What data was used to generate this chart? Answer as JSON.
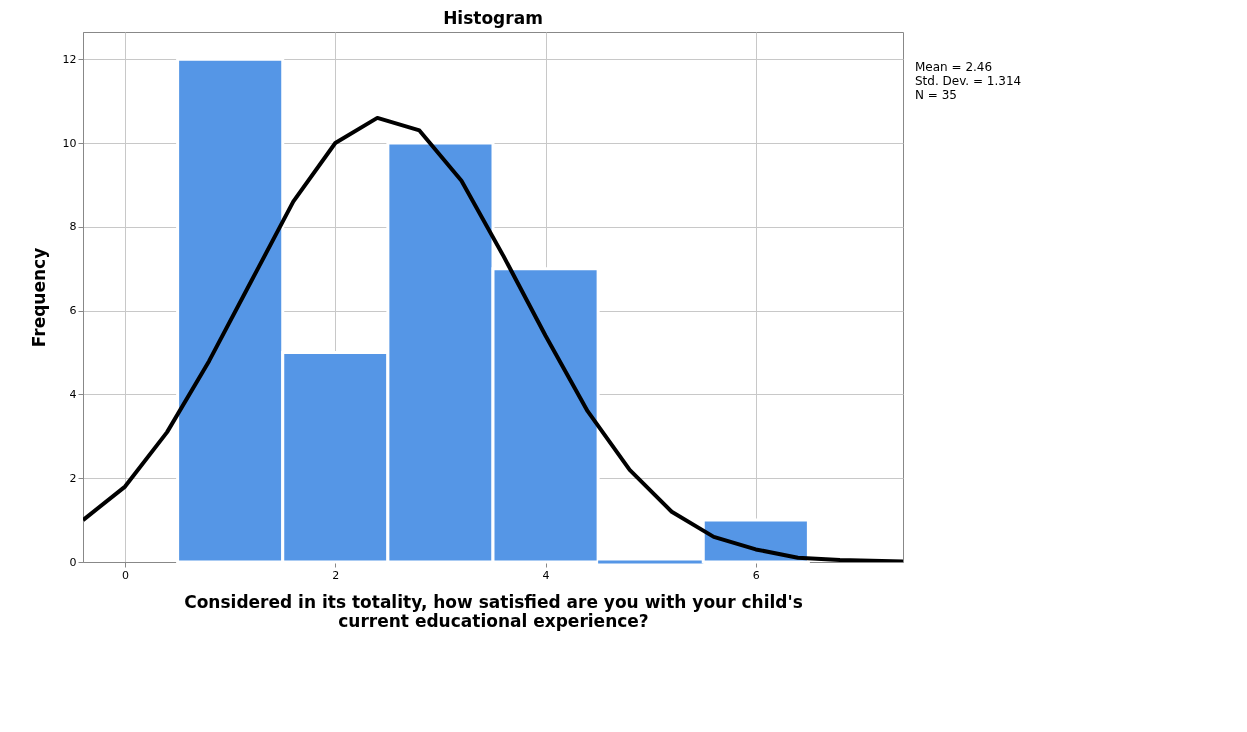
{
  "chart_data": {
    "type": "histogram",
    "title": "Histogram",
    "xlabel": "Considered in its totality, how satisfied are you with your child's\ncurrent educational experience?",
    "ylabel": "Frequency",
    "bins": [
      0.5,
      1.5,
      2.5,
      3.5,
      4.5,
      5.5,
      6.5
    ],
    "values": [
      12,
      5,
      10,
      7,
      0,
      1
    ],
    "color": "#5596e6",
    "series": [
      {
        "type": "line",
        "color": "#000000",
        "line_style": "solid",
        "x": [
          -0.4,
          0.0,
          0.4,
          0.8,
          1.2,
          1.6,
          2.0,
          2.4,
          2.8,
          3.2,
          3.6,
          4.0,
          4.4,
          4.8,
          5.2,
          5.6,
          6.0,
          6.4,
          6.8,
          7.4
        ],
        "values": [
          1.0,
          1.8,
          3.1,
          4.8,
          6.7,
          8.6,
          10.0,
          10.6,
          10.3,
          9.1,
          7.3,
          5.4,
          3.6,
          2.2,
          1.2,
          0.6,
          0.3,
          0.1,
          0.05,
          0.01
        ]
      }
    ],
    "annotations": [
      "Mean = 2.46",
      "Std. Dev. = 1.314",
      "N = 35"
    ],
    "xlim": [
      -0.4,
      7.4
    ],
    "ylim": [
      0,
      12.65
    ],
    "xticks": [
      0,
      2,
      4,
      6
    ],
    "yticks": [
      0,
      2,
      4,
      6,
      8,
      10,
      12
    ],
    "grid": true
  }
}
